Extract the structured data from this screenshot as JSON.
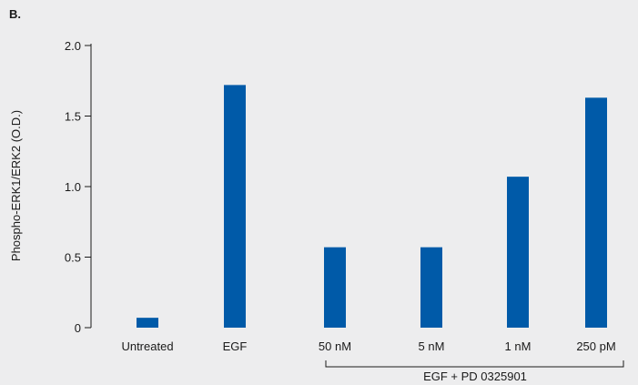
{
  "panel_label": "B.",
  "chart_data": {
    "type": "bar",
    "categories": [
      "Untreated",
      "EGF",
      "50 nM",
      "5 nM",
      "1 nM",
      "250 pM"
    ],
    "values": [
      0.07,
      1.72,
      0.57,
      0.57,
      1.07,
      1.63
    ],
    "ylabel": "Phospho-ERK1/ERK2 (O.D.)",
    "ylim": [
      0,
      2.0
    ],
    "yticks": [
      0,
      0.5,
      1.0,
      1.5,
      2.0
    ],
    "ytick_labels": [
      "0",
      "0.5",
      "1.0",
      "1.5",
      "2.0"
    ],
    "bar_color": "#005aa8",
    "group_label": "EGF + PD 0325901",
    "grid": false
  }
}
